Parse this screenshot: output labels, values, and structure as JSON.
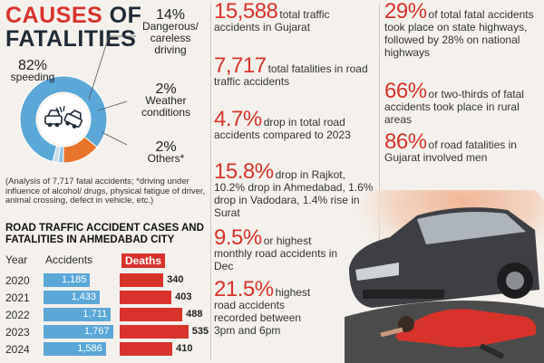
{
  "title": {
    "line1_red": "CAUSES",
    "line1_dark": "OF",
    "line2": "FATALITIES"
  },
  "pie": {
    "slices": [
      {
        "pct": "82%",
        "label": "speeding",
        "value": 82,
        "color": "#5aa7d8"
      },
      {
        "pct": "14%",
        "label": "Dangerous/ careless driving",
        "value": 14,
        "color": "#e8742a"
      },
      {
        "pct": "2%",
        "label": "Weather conditions",
        "value": 2,
        "color": "#8fc3e6"
      },
      {
        "pct": "2%",
        "label": "Others*",
        "value": 2,
        "color": "#c9dbe6"
      }
    ]
  },
  "analysis_note": "(Analysis of 7,717 fatal accidents; *driving under influence of alcohol/ drugs, physical fatigue of driver, animal crossing, defect in vehicle, etc.)",
  "bar_title": "ROAD TRAFFIC ACCIDENT CASES AND FATALITIES IN AHMEDABAD CITY",
  "table_headers": {
    "year": "Year",
    "accidents": "Accidents",
    "deaths": "Deaths"
  },
  "chart_data": {
    "type": "bar",
    "title": "ROAD TRAFFIC ACCIDENT CASES AND FATALITIES IN AHMEDABAD CITY",
    "categories": [
      "2020",
      "2021",
      "2022",
      "2023",
      "2024"
    ],
    "series": [
      {
        "name": "Accidents",
        "values": [
          1185,
          1433,
          1711,
          1767,
          1586
        ],
        "labels": [
          "1,185",
          "1,433",
          "1,711",
          "1,767",
          "1,586"
        ]
      },
      {
        "name": "Deaths",
        "values": [
          340,
          403,
          488,
          535,
          410
        ],
        "labels": [
          "340",
          "403",
          "488",
          "535",
          "410"
        ]
      }
    ]
  },
  "stats_mid": [
    {
      "num": "15,588",
      "text": "total traffic accidents in Gujarat"
    },
    {
      "num": "7,717",
      "text": "total fatalities in road traffic accidents"
    },
    {
      "num": "4.7%",
      "text": "drop in total road accidents compared to 2023"
    },
    {
      "num": "15.8%",
      "text": "drop in Rajkot, 10.2% drop in Ahmedabad, 1.6% drop in Vadodara, 1.4% rise in Surat"
    },
    {
      "num": "9.5%",
      "text": "or highest monthly road accidents in Dec"
    },
    {
      "num": "21.5%",
      "text": "highest road accidents recorded between 3pm and 6pm"
    }
  ],
  "stats_right": [
    {
      "num": "29%",
      "text": "of total fatal accidents took place on state highways, followed by 28% on national highways"
    },
    {
      "num": "66%",
      "text": "or two-thirds of fatal accidents took place in rural areas"
    },
    {
      "num": "86%",
      "text": "of road fatalities in Gujarat involved men"
    }
  ],
  "colors": {
    "accent": "#d8332b",
    "bar_blue": "#5aa7d8",
    "pie_orange": "#e8742a"
  }
}
